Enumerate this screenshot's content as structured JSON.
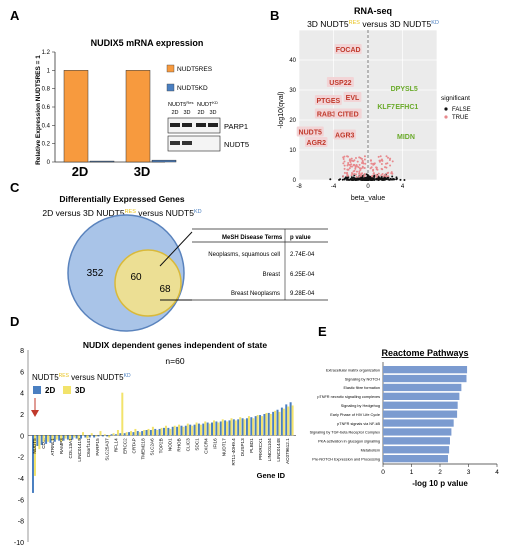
{
  "panels": {
    "A": "A",
    "B": "B",
    "C": "C",
    "D": "D",
    "E": "E"
  },
  "chart_data": [
    {
      "panel": "A",
      "type": "bar",
      "title": "NUDIX5 mRNA expression",
      "ylabel": "Relative Expression NUDT5RES = 1",
      "categories": [
        "2D",
        "3D"
      ],
      "series": [
        {
          "name": "NUDT5RES",
          "values": [
            1.0,
            1.0
          ],
          "color": "#f79a3e"
        },
        {
          "name": "NUDT5KD",
          "values": [
            0.01,
            0.02
          ],
          "color": "#4a7fc1"
        }
      ],
      "ylim": [
        0,
        1.2
      ],
      "yticks": [
        "0",
        "0.2",
        "0.4",
        "0.6",
        "0.8",
        "1",
        "1.2"
      ],
      "blot": {
        "header_left": "NUDT5",
        "header_left_sup": "Res",
        "header_right": "NUDT",
        "header_right_sup": "KD",
        "cols": [
          "2D",
          "3D",
          "2D",
          "3D"
        ],
        "bands": [
          "PARP1",
          "NUDT5"
        ]
      }
    },
    {
      "panel": "B",
      "type": "scatter",
      "title": "RNA-seq",
      "subtitle_prefix": "3D NUDT5",
      "subtitle_sup1": "RES",
      "subtitle_mid": " versus  3D NUDT5",
      "subtitle_sup2": "KD",
      "xlabel": "beta_value",
      "ylabel": "-log10(qval)",
      "xlim": [
        -8,
        8
      ],
      "ylim": [
        0,
        50
      ],
      "xticks": [
        "-8",
        "-4",
        "0",
        "4"
      ],
      "yticks": [
        "0",
        "10",
        "20",
        "30",
        "40"
      ],
      "legend": {
        "title": "significant",
        "items": [
          "FALSE",
          "TRUE"
        ]
      },
      "labels_left": [
        {
          "text": "FOCAD",
          "x": -2.3,
          "y": 43
        },
        {
          "text": "USP22",
          "x": -3.2,
          "y": 32
        },
        {
          "text": "PTGES",
          "x": -4.6,
          "y": 26
        },
        {
          "text": "EVL",
          "x": -1.8,
          "y": 27
        },
        {
          "text": "RAB35",
          "x": -4.6,
          "y": 21.5
        },
        {
          "text": "CITED",
          "x": -2.3,
          "y": 21.5
        },
        {
          "text": "AGR3",
          "x": -2.7,
          "y": 14.5
        },
        {
          "text": "NUDT5",
          "x": -6.7,
          "y": 15.5
        },
        {
          "text": "AGR2",
          "x": -6.0,
          "y": 12
        }
      ],
      "labels_right": [
        {
          "text": "DPYSL5",
          "x": 4.2,
          "y": 30
        },
        {
          "text": "EFHC1",
          "x": 4.5,
          "y": 24
        },
        {
          "text": "KLF7",
          "x": 2.1,
          "y": 24
        },
        {
          "text": "MIDN",
          "x": 4.4,
          "y": 14
        }
      ]
    },
    {
      "panel": "C",
      "type": "venn",
      "title": "Differentially Expressed Genes",
      "subtitle_a": "2D versus 3D NUDT5",
      "subtitle_sup1": "RES",
      "subtitle_b": " versus NUDT5",
      "subtitle_sup2": "KD",
      "left_only": "352",
      "overlap": "60",
      "right_only": "68",
      "table": {
        "headers": [
          "MeSH Disease Terms",
          "p value"
        ],
        "rows": [
          [
            "Neoplasms, squamous cell",
            "2.74E-04"
          ],
          [
            "Breast",
            "6.25E-04"
          ],
          [
            "Breast Neoplasms",
            "9.28E-04"
          ]
        ]
      }
    },
    {
      "panel": "D",
      "type": "bar",
      "title": "NUDIX dependent genes independent of state",
      "subtitle": "n=60",
      "legend_prefix": "NUDT5",
      "legend_sup1": "RES",
      "legend_mid": " versus NUDT5",
      "legend_sup2": "KD",
      "xlabel": "Gene ID",
      "ylim": [
        -10,
        8
      ],
      "yticks": [
        "8",
        "6",
        "4",
        "2",
        "0",
        "-2",
        "-4",
        "-6",
        "-8",
        "-10"
      ],
      "gene_labels": [
        "NUDT5",
        "CD...",
        "ATRNL1",
        "RAMP3",
        "COL13A1",
        "LINC01419",
        "C6orf141",
        "PARP15",
        "SLC25A37",
        "RFL14",
        "ERCC2",
        "CRTAP",
        "TMEM218",
        "SLC2A6",
        "TOP2B",
        "NOD1",
        "RHOB",
        "CLIC3",
        "SDC1",
        "CXCR4",
        "IFI16",
        "NUDT17",
        "RT11-40H9.4",
        "DUSP13",
        "PLBD1",
        "PRKRCX1",
        "LINC01104",
        "LINC01448",
        "AC079612.1"
      ],
      "series": [
        {
          "name": "2D",
          "color": "#4a7fc1",
          "values": [
            -5.4,
            -1.0,
            -0.9,
            -0.8,
            -0.7,
            -0.6,
            -0.5,
            -0.5,
            -0.4,
            -0.4,
            -0.3,
            -0.3,
            -0.2,
            -0.2,
            -0.2,
            -0.1,
            -0.1,
            -0.1,
            0.1,
            0.1,
            0.2,
            0.2,
            0.3,
            0.3,
            0.4,
            0.4,
            0.5,
            0.5,
            0.6,
            0.6,
            0.7,
            0.7,
            0.8,
            0.8,
            0.9,
            0.9,
            1.0,
            1.0,
            1.1,
            1.1,
            1.2,
            1.2,
            1.3,
            1.3,
            1.4,
            1.4,
            1.5,
            1.5,
            1.6,
            1.6,
            1.7,
            1.8,
            1.9,
            2.0,
            2.1,
            2.2,
            2.4,
            2.6,
            2.9,
            3.1
          ]
        },
        {
          "name": "3D",
          "color": "#f2e36b",
          "values": [
            -3.8,
            -1.3,
            -0.6,
            -0.6,
            -0.5,
            -0.4,
            -0.6,
            -0.3,
            -0.5,
            -0.2,
            -0.4,
            0.3,
            -0.3,
            0.2,
            -0.1,
            0.4,
            0.1,
            -0.2,
            0.2,
            0.5,
            4.0,
            0.3,
            0.4,
            0.6,
            0.3,
            0.5,
            0.6,
            0.8,
            0.5,
            0.7,
            0.9,
            0.6,
            0.9,
            1.0,
            0.8,
            1.1,
            0.9,
            1.2,
            1.0,
            1.3,
            1.1,
            1.4,
            1.2,
            1.5,
            1.3,
            1.6,
            1.4,
            1.7,
            1.5,
            1.8,
            1.6,
            1.9,
            1.8,
            2.1,
            2.0,
            2.3,
            2.2,
            2.5,
            2.7,
            2.8
          ]
        }
      ]
    },
    {
      "panel": "E",
      "type": "bar",
      "orientation": "horizontal",
      "title": "Reactome Pathways",
      "xlabel": "-log 10 p value",
      "xlim": [
        0,
        4
      ],
      "xticks": [
        "0",
        "1",
        "2",
        "3",
        "4"
      ],
      "categories": [
        "Extracellular matrix organization",
        "Signaling by NOTCH",
        "Elastic fibre formation",
        "pTNFR necrotic signalling complexes",
        "Signaling by Hedgehog",
        "Early Phase of HIV Life Cycle",
        "pTNFR signals via NF-kB",
        "Signaling by TGF-beta Receptor Complex",
        "PKA activation in glucagon signalling",
        "Metabolism",
        "Pre-NOTCH Expression and Processing"
      ],
      "values": [
        2.95,
        2.93,
        2.75,
        2.68,
        2.62,
        2.6,
        2.48,
        2.4,
        2.35,
        2.32,
        2.28
      ],
      "color": "#7b9bd0"
    }
  ]
}
